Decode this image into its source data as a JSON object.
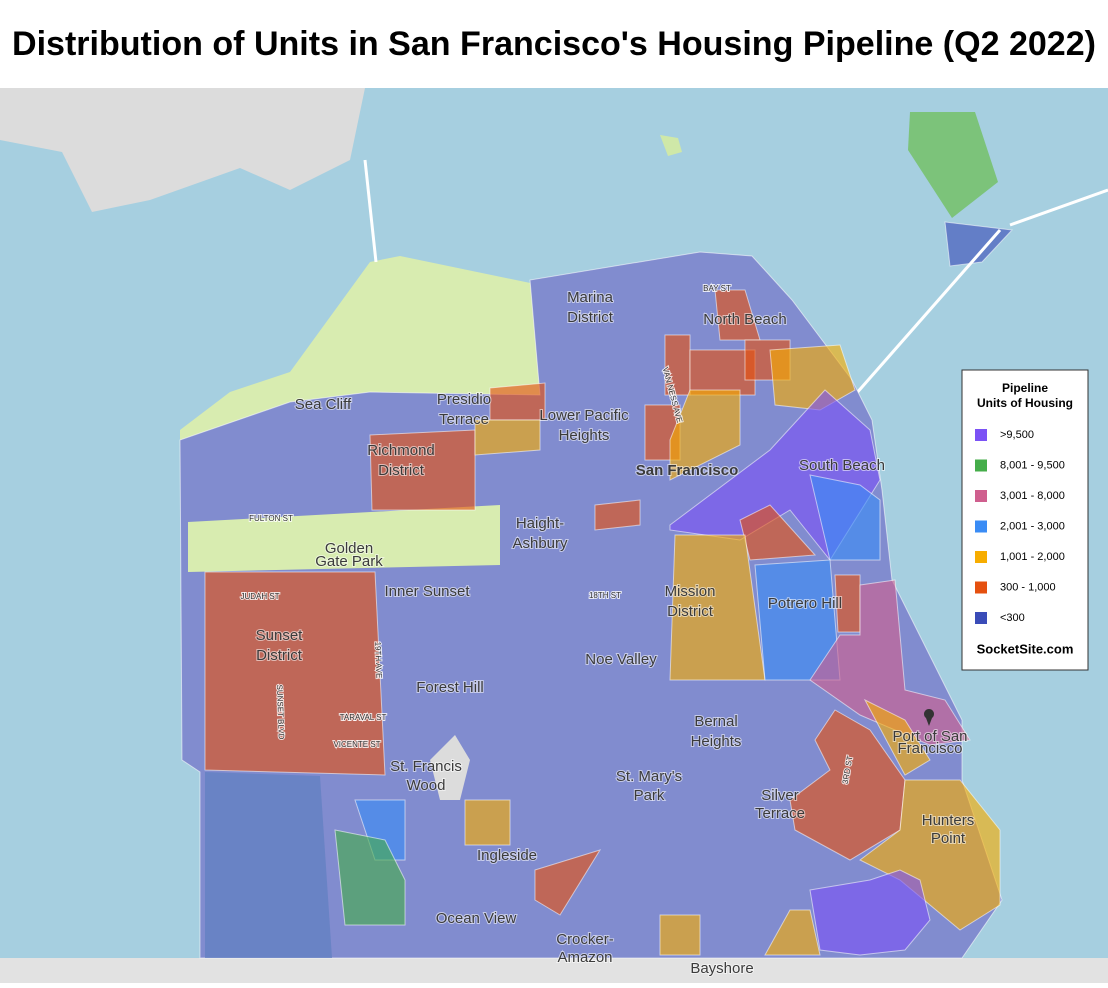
{
  "title": "Distribution of Units in San Francisco's Housing Pipeline (Q2 2022)",
  "legend": {
    "title": [
      "Pipeline",
      "Units of Housing"
    ],
    "items": [
      {
        "label": ">9,500",
        "color": "#7b52f5"
      },
      {
        "label": "8,001 - 9,500",
        "color": "#45ad4a"
      },
      {
        "label": "3,001 - 8,000",
        "color": "#cf5f8e"
      },
      {
        "label": "2,001 - 3,000",
        "color": "#3a8cf5"
      },
      {
        "label": "1,001 - 2,000",
        "color": "#f7ad00"
      },
      {
        "label": "300 - 1,000",
        "color": "#e5500f"
      },
      {
        "label": "<300",
        "color": "#3a4cb8"
      }
    ],
    "credit": "SocketSite.com"
  },
  "neighborhoods": [
    [
      "Marina",
      "District"
    ],
    [
      "North Beach"
    ],
    [
      "Sea Cliff"
    ],
    [
      "Presidio",
      "Terrace"
    ],
    [
      "Lower Pacific",
      "Heights"
    ],
    [
      "Richmond",
      "District"
    ],
    [
      "San Francisco"
    ],
    [
      "South Beach"
    ],
    [
      "Haight-",
      "Ashbury"
    ],
    [
      "Golden",
      "Gate Park"
    ],
    [
      "Inner Sunset"
    ],
    [
      "Mission",
      "District"
    ],
    [
      "Potrero Hill"
    ],
    [
      "Sunset",
      "District"
    ],
    [
      "Noe Valley"
    ],
    [
      "Forest Hill"
    ],
    [
      "Bernal",
      "Heights"
    ],
    [
      "Port of San",
      "Francisco"
    ],
    [
      "St. Francis",
      "Wood"
    ],
    [
      "St. Mary's",
      "Park"
    ],
    [
      "Silver",
      "Terrace"
    ],
    [
      "Hunters",
      "Point"
    ],
    [
      "Ingleside"
    ],
    [
      "Ocean View"
    ],
    [
      "Crocker-",
      "Amazon"
    ],
    [
      "Bayshore"
    ]
  ],
  "streets": [
    "BAY ST",
    "VAN NESS AVE",
    "FULTON ST",
    "JUDAH ST",
    "19TH AVE",
    "18TH ST",
    "SUNSET BLVD",
    "TARAVAL ST",
    "VICENTE ST",
    "3RD ST"
  ]
}
